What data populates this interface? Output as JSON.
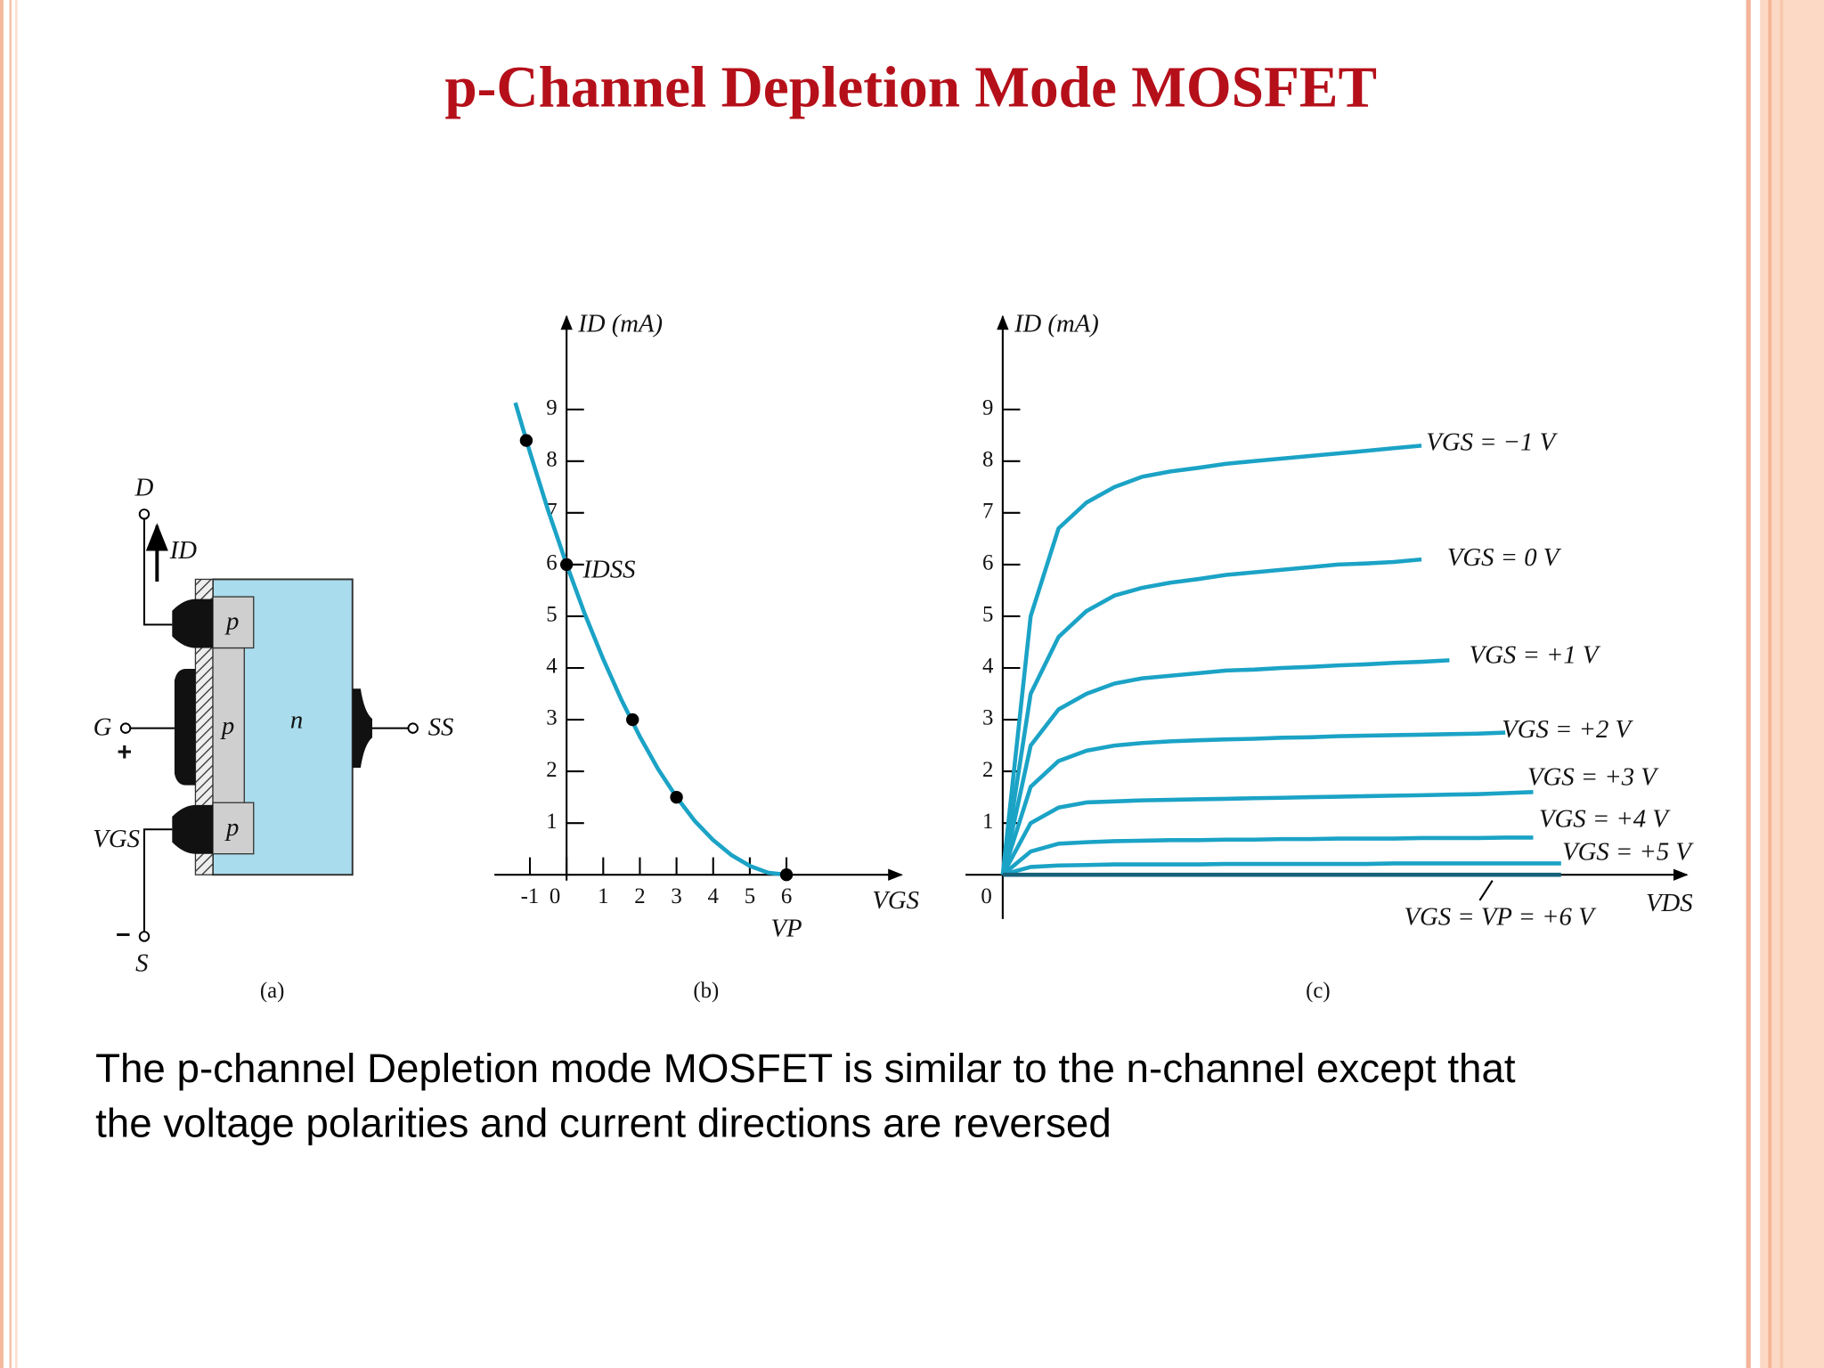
{
  "slide": {
    "title": "p-Channel Depletion Mode MOSFET",
    "caption_lines": [
      "The p-channel Depletion mode MOSFET is similar to the  n-channel except that",
      "the voltage polarities and current directions are reversed"
    ]
  },
  "diagram": {
    "caption": "(a)",
    "labels": {
      "drain": "D",
      "drain_current": "ID",
      "gate": "G",
      "gate_plus": "+",
      "vgs": "VGS",
      "source_minus": "−",
      "source": "S",
      "substrate": "SS",
      "p_drain": "p",
      "p_channel": "p",
      "p_source": "p",
      "n_body": "n"
    }
  },
  "chart_data": [
    {
      "type": "line",
      "caption": "(b)",
      "ylabel": "ID (mA)",
      "xlabel": "VGS",
      "idss_label": "IDSS",
      "vp_label": "VP",
      "color": "#1ba3c6",
      "x": [
        -1.4,
        -1,
        -0.5,
        0,
        0.5,
        1,
        1.5,
        2,
        2.5,
        3,
        3.5,
        4,
        4.5,
        5,
        5.5,
        6
      ],
      "values": [
        9.13,
        8.17,
        7.04,
        6,
        5.04,
        4.17,
        3.38,
        2.67,
        2.04,
        1.5,
        1.04,
        0.67,
        0.38,
        0.17,
        0.04,
        0
      ],
      "points": {
        "x": [
          -1.1,
          0,
          1.8,
          3,
          6
        ],
        "values": [
          8.4,
          6,
          3,
          1.5,
          0
        ],
        "color": "#000000"
      },
      "xlim": [
        -1.97,
        9.14
      ],
      "ylim": [
        0,
        10.8
      ],
      "xticks": [
        -1,
        0,
        1,
        2,
        3,
        4,
        5,
        6
      ],
      "yticks": [
        1,
        2,
        3,
        4,
        5,
        6,
        7,
        8,
        9
      ]
    },
    {
      "type": "line",
      "caption": "(c)",
      "ylabel": "ID (mA)",
      "xlabel": "VDS",
      "categories": [
        null,
        null,
        null,
        null,
        null,
        null,
        null,
        null,
        null,
        null,
        null,
        null,
        null,
        null,
        null,
        null,
        null,
        null,
        null,
        null,
        null
      ],
      "ylim": [
        0,
        10.8
      ],
      "yticks": [
        0,
        1,
        2,
        3,
        4,
        5,
        6,
        7,
        8,
        9
      ],
      "series": [
        {
          "name": "VGS = −1 V",
          "color": "#1ba3c6",
          "values": [
            0,
            5.0,
            6.7,
            7.2,
            7.5,
            7.7,
            7.8,
            7.87,
            7.95,
            8.0,
            8.05,
            8.1,
            8.15,
            8.2,
            8.25,
            8.3,
            null,
            null,
            null,
            null,
            null
          ]
        },
        {
          "name": "VGS = 0 V",
          "color": "#1ba3c6",
          "values": [
            0,
            3.5,
            4.6,
            5.1,
            5.4,
            5.55,
            5.65,
            5.72,
            5.8,
            5.85,
            5.9,
            5.95,
            6.0,
            6.02,
            6.05,
            6.1,
            null,
            null,
            null,
            null,
            null
          ]
        },
        {
          "name": "VGS = +1 V",
          "color": "#1ba3c6",
          "values": [
            0,
            2.5,
            3.2,
            3.5,
            3.7,
            3.8,
            3.85,
            3.9,
            3.95,
            3.97,
            4.0,
            4.02,
            4.05,
            4.07,
            4.1,
            4.12,
            4.15,
            null,
            null,
            null,
            null
          ]
        },
        {
          "name": "VGS = +2 V",
          "color": "#1ba3c6",
          "values": [
            0,
            1.7,
            2.2,
            2.4,
            2.5,
            2.55,
            2.58,
            2.6,
            2.62,
            2.63,
            2.65,
            2.66,
            2.68,
            2.69,
            2.7,
            2.71,
            2.72,
            2.73,
            2.75,
            null,
            null
          ]
        },
        {
          "name": "VGS = +3 V",
          "color": "#1ba3c6",
          "values": [
            0,
            1.0,
            1.3,
            1.4,
            1.42,
            1.44,
            1.45,
            1.46,
            1.47,
            1.48,
            1.49,
            1.5,
            1.51,
            1.52,
            1.53,
            1.54,
            1.55,
            1.56,
            1.58,
            1.6,
            null
          ]
        },
        {
          "name": "VGS = +4 V",
          "color": "#1ba3c6",
          "values": [
            0,
            0.45,
            0.6,
            0.63,
            0.65,
            0.66,
            0.67,
            0.67,
            0.68,
            0.68,
            0.69,
            0.69,
            0.7,
            0.7,
            0.7,
            0.71,
            0.71,
            0.71,
            0.72,
            0.72,
            null
          ]
        },
        {
          "name": "VGS = +5 V",
          "color": "#1ba3c6",
          "values": [
            0,
            0.15,
            0.18,
            0.19,
            0.2,
            0.2,
            0.2,
            0.2,
            0.21,
            0.21,
            0.21,
            0.21,
            0.21,
            0.21,
            0.22,
            0.22,
            0.22,
            0.22,
            0.22,
            0.22,
            0.22
          ]
        },
        {
          "name": "VGS = VP = +6 V",
          "color": "#17607a",
          "values": [
            0,
            0,
            0,
            0,
            0,
            0,
            0,
            0,
            0,
            0,
            0,
            0,
            0,
            0,
            0,
            0,
            0,
            0,
            0,
            0,
            0
          ]
        }
      ]
    }
  ]
}
